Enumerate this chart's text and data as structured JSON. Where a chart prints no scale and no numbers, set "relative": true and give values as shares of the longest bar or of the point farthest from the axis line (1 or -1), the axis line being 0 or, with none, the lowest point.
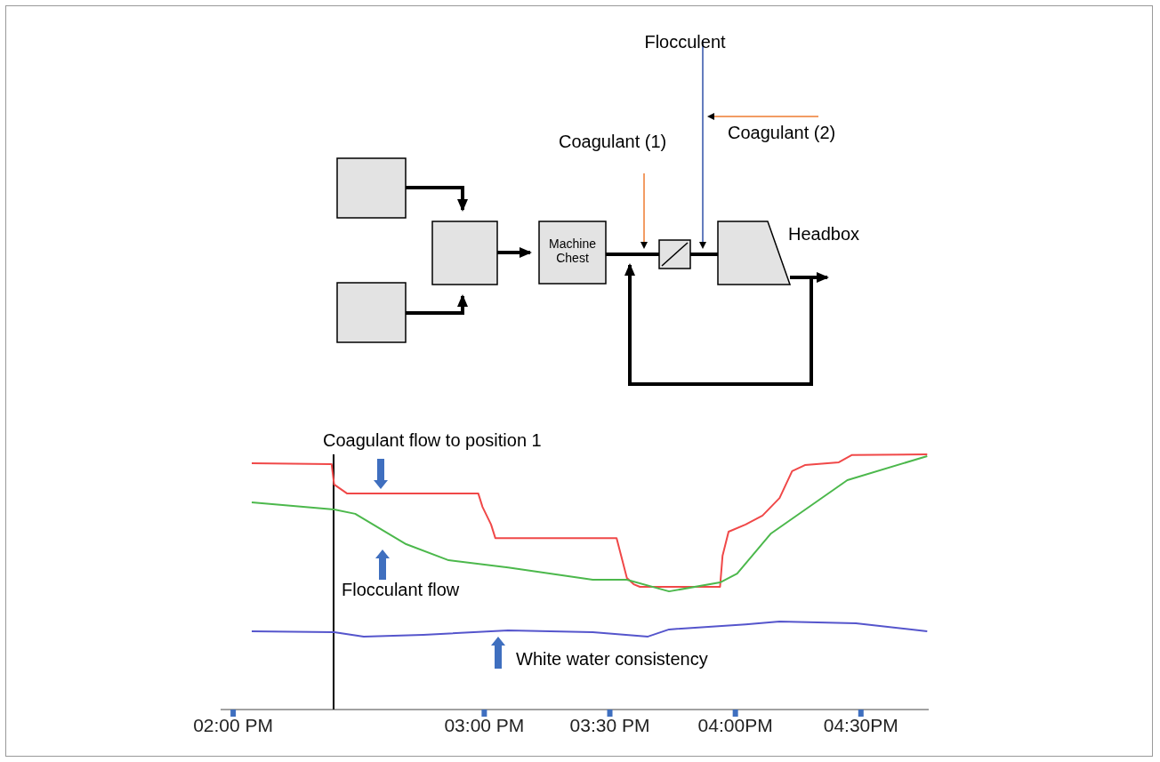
{
  "chart_data": {
    "type": "line",
    "relative": true,
    "annotations": [
      "Flocculent",
      "Coagulant (1)",
      "Coagulant (2)",
      "Machine Chest",
      "Headbox"
    ],
    "xlim": [
      13.95,
      16.77
    ],
    "xticks": [
      {
        "value": 14,
        "label": "02:00 PM"
      },
      {
        "value": 15,
        "label": "03:00 PM"
      },
      {
        "value": 15.5,
        "label": "03:30 PM"
      },
      {
        "value": 16,
        "label": "04:00PM"
      },
      {
        "value": 16.5,
        "label": "04:30PM"
      }
    ],
    "series": [
      {
        "name": "Coagulant flow to position 1",
        "color": "#f04848",
        "x": [
          14.074,
          14.392,
          14.402,
          14.453,
          14.976,
          14.993,
          15.027,
          15.044,
          15.527,
          15.568,
          15.595,
          15.62,
          15.939,
          15.949,
          15.973,
          16.041,
          16.108,
          16.176,
          16.226,
          16.277,
          16.412,
          16.463,
          16.764
        ],
        "values": [
          0.965,
          0.962,
          0.882,
          0.847,
          0.847,
          0.794,
          0.725,
          0.672,
          0.672,
          0.516,
          0.491,
          0.481,
          0.481,
          0.603,
          0.697,
          0.725,
          0.76,
          0.829,
          0.934,
          0.958,
          0.969,
          0.997,
          1
        ]
      },
      {
        "name": "Flocculant flow",
        "color": "#4cb84c",
        "x": [
          14.074,
          14.402,
          14.486,
          14.689,
          14.858,
          15.095,
          15.432,
          15.568,
          15.736,
          15.939,
          16.007,
          16.142,
          16.446,
          16.764
        ],
        "values": [
          0.812,
          0.784,
          0.767,
          0.648,
          0.585,
          0.557,
          0.509,
          0.509,
          0.463,
          0.498,
          0.533,
          0.69,
          0.899,
          0.993
        ]
      },
      {
        "name": "White water consistency",
        "color": "#5555cc",
        "x": [
          14.074,
          14.402,
          14.52,
          14.757,
          15.095,
          15.432,
          15.652,
          15.736,
          16.041,
          16.176,
          16.48,
          16.764
        ],
        "values": [
          0.307,
          0.303,
          0.286,
          0.293,
          0.31,
          0.303,
          0.286,
          0.314,
          0.334,
          0.345,
          0.338,
          0.307
        ]
      }
    ],
    "ref_lines": [
      {
        "axis": "x",
        "value": 14.4,
        "color": "#000000"
      }
    ],
    "legend": false,
    "grid": false,
    "marker": "none",
    "line_style": "solid"
  }
}
